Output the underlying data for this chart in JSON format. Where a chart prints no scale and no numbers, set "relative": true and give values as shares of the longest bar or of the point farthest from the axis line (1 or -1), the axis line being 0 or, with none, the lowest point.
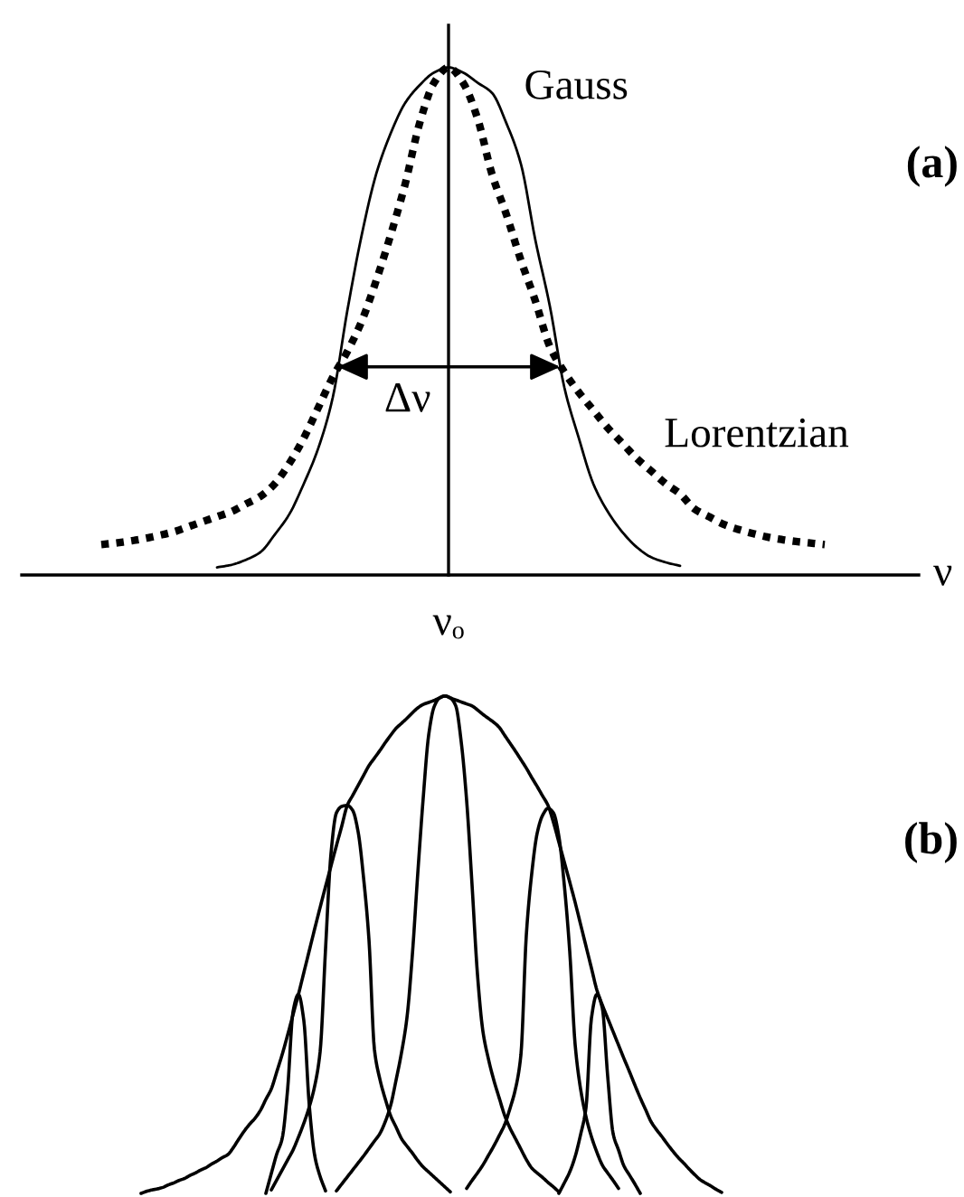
{
  "chart_data": [
    {
      "type": "line",
      "relative": true,
      "xlabel": "ν",
      "categories": [
        null,
        null,
        null,
        null,
        null,
        null,
        null,
        null,
        null,
        null,
        null,
        null,
        null,
        null,
        null,
        null,
        null,
        null,
        null,
        null,
        null,
        null,
        null,
        null,
        null,
        null,
        null,
        null,
        null,
        null,
        null,
        null,
        null,
        null,
        null,
        null,
        null,
        null,
        null,
        null,
        null,
        null,
        null,
        null,
        null,
        null,
        null,
        null,
        null,
        null,
        null
      ],
      "series": [
        {
          "name": "Gauss",
          "color": "#000000",
          "line_style": "solid",
          "values": [
            null,
            null,
            null,
            null,
            null,
            null,
            null,
            null,
            0.015,
            0.02,
            0.03,
            0.045,
            0.08,
            0.12,
            0.18,
            0.25,
            0.35,
            0.52,
            0.67,
            0.79,
            0.87,
            0.93,
            0.965,
            0.99,
            1.0,
            0.99,
            0.97,
            0.95,
            0.89,
            0.81,
            0.66,
            0.53,
            0.37,
            0.27,
            0.18,
            0.125,
            0.085,
            0.055,
            0.035,
            0.025,
            0.018,
            null,
            null,
            null,
            null,
            null,
            null,
            null,
            null,
            null,
            null
          ]
        },
        {
          "name": "Lorentzian",
          "color": "#000000",
          "line_style": "dotted",
          "values": [
            0.06,
            0.063,
            0.067,
            0.072,
            0.078,
            0.085,
            0.095,
            0.105,
            0.115,
            0.125,
            0.14,
            0.155,
            0.18,
            0.22,
            0.27,
            0.33,
            0.39,
            0.44,
            0.5,
            0.58,
            0.67,
            0.77,
            0.89,
            0.97,
            1.0,
            0.97,
            0.9,
            0.79,
            0.71,
            0.62,
            0.54,
            0.45,
            0.4,
            0.36,
            0.325,
            0.29,
            0.26,
            0.23,
            0.205,
            0.18,
            0.16,
            0.13,
            0.115,
            0.1,
            0.09,
            0.082,
            0.075,
            0.07,
            0.066,
            0.063,
            0.06
          ]
        }
      ],
      "annotations": [
        "(a)",
        "νₒ",
        "Δν"
      ]
    },
    {
      "type": "line",
      "relative": true,
      "categories": [
        null,
        null,
        null,
        null,
        null,
        null,
        null,
        null,
        null,
        null,
        null,
        null,
        null,
        null,
        null,
        null,
        null,
        null,
        null,
        null,
        null,
        null,
        null,
        null,
        null,
        null,
        null,
        null,
        null,
        null,
        null,
        null,
        null,
        null,
        null,
        null,
        null,
        null,
        null,
        null,
        null,
        null,
        null,
        null,
        null,
        null,
        null,
        null,
        null,
        null,
        null,
        null,
        null,
        null,
        null,
        null,
        null,
        null,
        null,
        null,
        null,
        null,
        null,
        null,
        null,
        null,
        null,
        null,
        null,
        null,
        null,
        null,
        null,
        null,
        null,
        null,
        null,
        null,
        null,
        null,
        null,
        null,
        null,
        null,
        null,
        null,
        null,
        null,
        null,
        null,
        null,
        null,
        null,
        null,
        null,
        null,
        null,
        null,
        null,
        null,
        null,
        null,
        null,
        null,
        null,
        null,
        null,
        null
      ],
      "series": [
        {
          "color": "#000000",
          "values": [
            0.0,
            0.004,
            0.007,
            0.009,
            0.012,
            0.017,
            0.021,
            0.026,
            0.03,
            0.036,
            0.041,
            0.047,
            0.052,
            0.059,
            0.065,
            0.072,
            0.078,
            0.092,
            0.109,
            0.125,
            0.139,
            0.151,
            0.167,
            0.189,
            0.21,
            0.244,
            0.279,
            0.318,
            0.359,
            0.4,
            0.444,
            0.488,
            0.532,
            0.575,
            0.617,
            0.658,
            0.699,
            0.739,
            0.78,
            0.8,
            0.82,
            0.84,
            0.86,
            0.875,
            0.89,
            0.906,
            0.921,
            0.935,
            0.945,
            0.955,
            0.966,
            0.976,
            0.983,
            0.987,
            0.991,
            0.996,
            1.0,
            0.996,
            0.992,
            0.988,
            0.984,
            0.98,
            0.972,
            0.963,
            0.955,
            0.947,
            0.937,
            0.921,
            0.905,
            0.889,
            0.872,
            0.855,
            0.836,
            0.818,
            0.799,
            0.78,
            0.746,
            0.706,
            0.666,
            0.626,
            0.585,
            0.541,
            0.497,
            0.453,
            0.409,
            0.379,
            0.352,
            0.325,
            0.298,
            0.271,
            0.245,
            0.218,
            0.192,
            0.168,
            0.144,
            0.128,
            0.114,
            0.099,
            0.085,
            0.072,
            0.061,
            0.049,
            0.038,
            0.028,
            0.021,
            0.015,
            0.008,
            0.002
          ]
        },
        {
          "color": "#000000",
          "values": [
            null,
            null,
            null,
            null,
            null,
            null,
            null,
            null,
            null,
            null,
            null,
            null,
            null,
            null,
            null,
            null,
            null,
            null,
            null,
            null,
            null,
            null,
            null,
            null,
            null,
            null,
            null,
            null,
            null,
            null,
            null,
            null,
            null,
            null,
            null,
            null,
            0.005,
            0.019,
            0.033,
            0.047,
            0.061,
            0.075,
            0.09,
            0.105,
            0.12,
            0.144,
            0.177,
            0.228,
            0.283,
            0.353,
            0.48,
            0.644,
            0.795,
            0.921,
            0.978,
            0.996,
            1.0,
            0.996,
            0.98,
            0.908,
            0.79,
            0.62,
            0.44,
            0.326,
            0.271,
            0.228,
            0.192,
            0.157,
            0.131,
            0.11,
            0.089,
            0.068,
            0.051,
            0.041,
            0.032,
            0.022,
            0.013,
            0.003,
            null,
            null,
            null,
            null,
            null,
            null,
            null,
            null,
            null,
            null,
            null,
            null,
            null,
            null,
            null,
            null,
            null,
            null,
            null,
            null,
            null,
            null,
            null,
            null,
            null,
            null,
            null,
            null,
            null,
            null
          ]
        },
        {
          "color": "#000000",
          "values": [
            null,
            null,
            null,
            null,
            null,
            null,
            null,
            null,
            null,
            null,
            null,
            null,
            null,
            null,
            null,
            null,
            null,
            null,
            null,
            null,
            null,
            null,
            null,
            null,
            0.007,
            0.027,
            0.047,
            0.067,
            0.087,
            0.113,
            0.141,
            0.174,
            0.216,
            0.285,
            0.492,
            0.683,
            0.765,
            0.778,
            0.78,
            0.77,
            0.727,
            0.635,
            0.51,
            0.29,
            0.23,
            0.19,
            0.156,
            0.133,
            0.11,
            0.095,
            0.081,
            0.066,
            0.053,
            0.043,
            0.033,
            0.023,
            0.013,
            0.003,
            null,
            null,
            null,
            null,
            null,
            null,
            null,
            null,
            null,
            null,
            null,
            null,
            null,
            null,
            null,
            null,
            null,
            null,
            null,
            null,
            null,
            null,
            null,
            null,
            null,
            null,
            null,
            null,
            null,
            null,
            null,
            null,
            null,
            null,
            null,
            null,
            null,
            null,
            null,
            null,
            null,
            null,
            null,
            null,
            null,
            null,
            null,
            null,
            null,
            null
          ]
        },
        {
          "color": "#000000",
          "values": [
            null,
            null,
            null,
            null,
            null,
            null,
            null,
            null,
            null,
            null,
            null,
            null,
            null,
            null,
            null,
            null,
            null,
            null,
            null,
            null,
            null,
            null,
            null,
            null,
            null,
            null,
            null,
            null,
            null,
            null,
            null,
            null,
            null,
            null,
            null,
            null,
            null,
            null,
            null,
            null,
            null,
            null,
            null,
            null,
            null,
            null,
            null,
            null,
            null,
            null,
            null,
            null,
            null,
            null,
            null,
            null,
            null,
            null,
            null,
            null,
            0.01,
            0.026,
            0.041,
            0.057,
            0.076,
            0.095,
            0.116,
            0.138,
            0.171,
            0.21,
            0.278,
            0.519,
            0.643,
            0.724,
            0.76,
            0.774,
            0.765,
            0.718,
            0.62,
            0.487,
            0.299,
            0.21,
            0.154,
            0.114,
            0.083,
            0.057,
            0.041,
            0.026,
            0.01,
            null,
            null,
            null,
            null,
            null,
            null,
            null,
            null,
            null,
            null,
            null,
            null,
            null,
            null,
            null,
            null,
            null,
            null,
            null
          ]
        },
        {
          "color": "#000000",
          "values": [
            null,
            null,
            null,
            null,
            null,
            null,
            null,
            null,
            null,
            null,
            null,
            null,
            null,
            null,
            null,
            null,
            null,
            null,
            null,
            null,
            null,
            null,
            null,
            0.0,
            0.04,
            0.079,
            0.11,
            0.208,
            0.365,
            0.4,
            0.347,
            0.177,
            0.076,
            0.034,
            0.005,
            null,
            null,
            null,
            null,
            null,
            null,
            null,
            null,
            null,
            null,
            null,
            null,
            null,
            null,
            null,
            null,
            null,
            null,
            null,
            null,
            null,
            null,
            null,
            null,
            null,
            null,
            null,
            null,
            null,
            null,
            null,
            null,
            null,
            null,
            null,
            null,
            null,
            null,
            null,
            null,
            null,
            null,
            null,
            null,
            null,
            null,
            null,
            null,
            null,
            null,
            null,
            null,
            null,
            null,
            null,
            null,
            null,
            null,
            null,
            null,
            null,
            null,
            null,
            null,
            null,
            null,
            null,
            null,
            null,
            null,
            null,
            null,
            null
          ]
        },
        {
          "color": "#000000",
          "values": [
            null,
            null,
            null,
            null,
            null,
            null,
            null,
            null,
            null,
            null,
            null,
            null,
            null,
            null,
            null,
            null,
            null,
            null,
            null,
            null,
            null,
            null,
            null,
            null,
            null,
            null,
            null,
            null,
            null,
            null,
            null,
            null,
            null,
            null,
            null,
            null,
            null,
            null,
            null,
            null,
            null,
            null,
            null,
            null,
            null,
            null,
            null,
            null,
            null,
            null,
            null,
            null,
            null,
            null,
            null,
            null,
            null,
            null,
            null,
            null,
            null,
            null,
            null,
            null,
            null,
            null,
            null,
            null,
            null,
            null,
            null,
            null,
            null,
            null,
            null,
            null,
            null,
            0.0,
            0.021,
            0.043,
            0.074,
            0.118,
            0.172,
            0.352,
            0.4,
            0.373,
            0.235,
            0.12,
            0.087,
            0.055,
            0.037,
            0.019,
            0.0,
            null,
            null,
            null,
            null,
            null,
            null,
            null,
            null,
            null,
            null,
            null,
            null,
            null,
            null,
            null
          ]
        }
      ],
      "annotations": [
        "(b)"
      ]
    }
  ]
}
